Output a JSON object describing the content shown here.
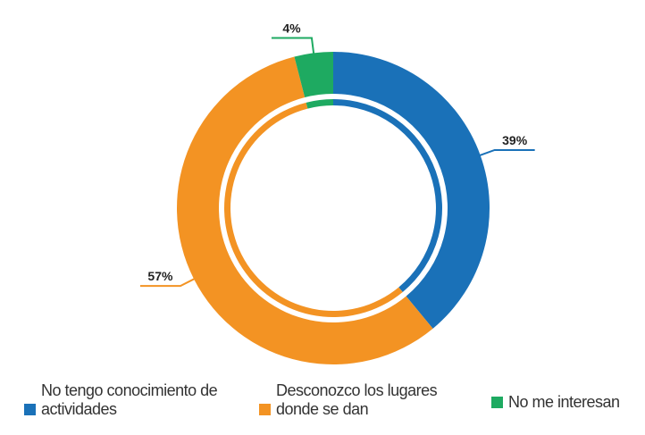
{
  "chart_data": {
    "type": "donut",
    "categories": [
      "No tengo conocimiento de actividades",
      "Desconozco los lugares donde se dan",
      "No me interesan"
    ],
    "values": [
      39,
      57,
      4
    ],
    "value_labels": [
      "39%",
      "57%",
      "4%"
    ],
    "colors": [
      "#1a71b8",
      "#f39323",
      "#1eaa61"
    ],
    "legend": "bottom"
  }
}
